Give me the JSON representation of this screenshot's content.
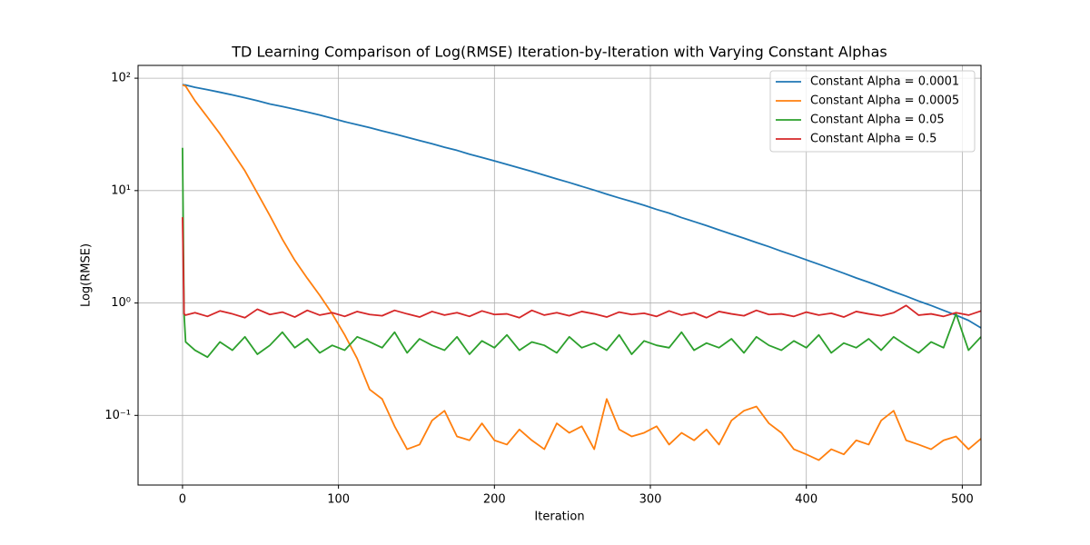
{
  "chart_data": {
    "type": "line",
    "title": "TD Learning Comparison of Log(RMSE) Iteration-by-Iteration with Varying Constant Alphas",
    "xlabel": "Iteration",
    "ylabel": "Log(RMSE)",
    "xlim": [
      -28.5,
      512
    ],
    "xticks": [
      0,
      100,
      200,
      300,
      400,
      500
    ],
    "ylim": [
      0.024,
      130
    ],
    "yscale": "log",
    "yticks": [
      {
        "value": 0.1,
        "label": "10⁻¹"
      },
      {
        "value": 1,
        "label": "10⁰"
      },
      {
        "value": 10,
        "label": "10¹"
      },
      {
        "value": 100,
        "label": "10²"
      }
    ],
    "grid": true,
    "legend": "upper right",
    "x": [
      0,
      1,
      2,
      8,
      16,
      24,
      32,
      40,
      48,
      56,
      64,
      72,
      80,
      88,
      96,
      104,
      112,
      120,
      128,
      136,
      144,
      152,
      160,
      168,
      176,
      184,
      192,
      200,
      208,
      216,
      224,
      232,
      240,
      248,
      256,
      264,
      272,
      280,
      288,
      296,
      304,
      312,
      320,
      328,
      336,
      344,
      352,
      360,
      368,
      376,
      384,
      392,
      400,
      408,
      416,
      424,
      432,
      440,
      448,
      456,
      464,
      472,
      480,
      488,
      496,
      504,
      512
    ],
    "series": [
      {
        "name": "Constant Alpha = 0.0001",
        "color": "#1f77b4",
        "values": [
          88,
          87,
          87,
          83,
          79,
          75,
          71,
          67,
          63,
          59,
          56,
          53,
          50,
          47,
          44,
          41,
          38.6,
          36.3,
          34.0,
          31.9,
          29.8,
          27.9,
          26.1,
          24.3,
          22.8,
          21.1,
          19.7,
          18.4,
          17.1,
          15.9,
          14.8,
          13.7,
          12.7,
          11.8,
          10.9,
          10.1,
          9.3,
          8.6,
          8.0,
          7.4,
          6.8,
          6.3,
          5.75,
          5.3,
          4.88,
          4.47,
          4.1,
          3.77,
          3.45,
          3.17,
          2.89,
          2.65,
          2.42,
          2.21,
          2.02,
          1.84,
          1.67,
          1.53,
          1.39,
          1.26,
          1.15,
          1.04,
          0.95,
          0.86,
          0.78,
          0.7,
          0.6
        ]
      },
      {
        "name": "Constant Alpha = 0.0005",
        "color": "#ff7f0e",
        "values": [
          87,
          86,
          85,
          63,
          45,
          32,
          22,
          15,
          9.5,
          6.0,
          3.7,
          2.4,
          1.66,
          1.17,
          0.8,
          0.52,
          0.32,
          0.17,
          0.14,
          0.08,
          0.05,
          0.055,
          0.09,
          0.11,
          0.065,
          0.06,
          0.085,
          0.06,
          0.055,
          0.075,
          0.06,
          0.05,
          0.085,
          0.07,
          0.08,
          0.05,
          0.14,
          0.075,
          0.065,
          0.07,
          0.08,
          0.055,
          0.07,
          0.06,
          0.075,
          0.055,
          0.09,
          0.11,
          0.12,
          0.085,
          0.07,
          0.05,
          0.045,
          0.04,
          0.05,
          0.045,
          0.06,
          0.055,
          0.09,
          0.11,
          0.06,
          0.055,
          0.05,
          0.06,
          0.065,
          0.05,
          0.062
        ]
      },
      {
        "name": "Constant Alpha = 0.05",
        "color": "#2ca02c",
        "values": [
          24,
          0.8,
          0.45,
          0.38,
          0.33,
          0.45,
          0.38,
          0.5,
          0.35,
          0.42,
          0.55,
          0.4,
          0.48,
          0.36,
          0.42,
          0.38,
          0.5,
          0.45,
          0.4,
          0.55,
          0.36,
          0.48,
          0.42,
          0.38,
          0.5,
          0.35,
          0.46,
          0.4,
          0.52,
          0.38,
          0.45,
          0.42,
          0.36,
          0.5,
          0.4,
          0.44,
          0.38,
          0.52,
          0.35,
          0.46,
          0.42,
          0.4,
          0.55,
          0.38,
          0.44,
          0.4,
          0.48,
          0.36,
          0.5,
          0.42,
          0.38,
          0.46,
          0.4,
          0.52,
          0.36,
          0.44,
          0.4,
          0.48,
          0.38,
          0.5,
          0.42,
          0.36,
          0.45,
          0.4,
          0.8,
          0.38,
          0.5
        ]
      },
      {
        "name": "Constant Alpha = 0.5",
        "color": "#d62728",
        "values": [
          5.8,
          0.8,
          0.78,
          0.82,
          0.76,
          0.85,
          0.8,
          0.74,
          0.88,
          0.79,
          0.83,
          0.75,
          0.86,
          0.78,
          0.82,
          0.76,
          0.84,
          0.79,
          0.77,
          0.86,
          0.8,
          0.75,
          0.84,
          0.78,
          0.82,
          0.76,
          0.85,
          0.79,
          0.8,
          0.74,
          0.86,
          0.78,
          0.82,
          0.77,
          0.84,
          0.8,
          0.75,
          0.83,
          0.79,
          0.81,
          0.76,
          0.85,
          0.78,
          0.82,
          0.74,
          0.84,
          0.8,
          0.77,
          0.86,
          0.79,
          0.8,
          0.76,
          0.83,
          0.78,
          0.81,
          0.75,
          0.84,
          0.8,
          0.77,
          0.82,
          0.95,
          0.78,
          0.8,
          0.76,
          0.82,
          0.78,
          0.85
        ]
      }
    ]
  }
}
